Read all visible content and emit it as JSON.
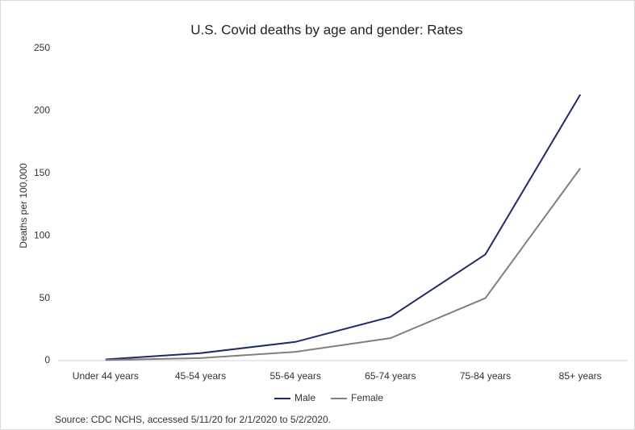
{
  "chart_data": {
    "type": "line",
    "title": "U.S. Covid deaths by age and gender: Rates",
    "y_label": "Deaths per 100,000",
    "source": "Source: CDC NCHS, accessed 5/11/20 for 2/1/2020 to 5/2/2020.",
    "categories": [
      "Under 44 years",
      "45-54 years",
      "55-64 years",
      "65-74 years",
      "75-84 years",
      "85+ years"
    ],
    "series": [
      {
        "name": "Male",
        "color": "#1f2a6b",
        "values": [
          1,
          6,
          15,
          35,
          85,
          213
        ]
      },
      {
        "name": "Female",
        "color": "#7f7f7f",
        "values": [
          0.5,
          2,
          7,
          18,
          50,
          154
        ]
      }
    ],
    "ylim": [
      0,
      250
    ],
    "yticks": [
      0,
      50,
      100,
      150,
      200,
      250
    ],
    "grid": false,
    "legend": "bottom"
  }
}
